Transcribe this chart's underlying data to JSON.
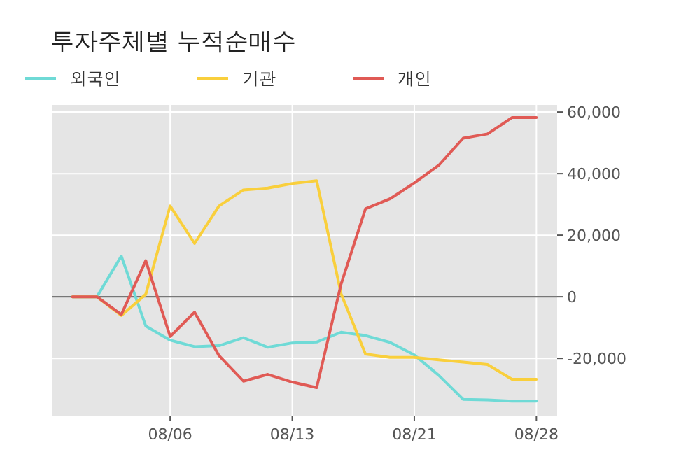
{
  "chart_data": {
    "type": "line",
    "title": "투자주체별 누적순매수",
    "categories": [
      null,
      null,
      null,
      null,
      "08/06",
      null,
      null,
      null,
      null,
      "08/13",
      null,
      null,
      null,
      null,
      "08/21",
      null,
      null,
      null,
      null,
      "08/28"
    ],
    "series": [
      {
        "name": "외국인",
        "color": "#6fdad6",
        "values": [
          0,
          0,
          13200,
          -9500,
          -14100,
          -16200,
          -15900,
          -13300,
          -16400,
          -15000,
          -14700,
          -11500,
          -12600,
          -14800,
          -18900,
          -25500,
          -33300,
          -33500,
          -33900,
          -33900
        ]
      },
      {
        "name": "기관",
        "color": "#f9cf3c",
        "values": [
          0,
          0,
          -6100,
          800,
          29500,
          17300,
          29500,
          34700,
          35300,
          36800,
          37700,
          1000,
          -18600,
          -19700,
          -19700,
          -20500,
          -21200,
          -22000,
          -26800,
          -26800
        ]
      },
      {
        "name": "개인",
        "color": "#e05a55",
        "values": [
          0,
          0,
          -5800,
          11700,
          -12900,
          -5000,
          -19100,
          -27400,
          -25200,
          -27700,
          -29500,
          4100,
          28600,
          31800,
          37000,
          42700,
          51500,
          52900,
          58200,
          58200
        ]
      }
    ],
    "ylim": [
      -38600,
      62300
    ],
    "yticks": [
      {
        "value": -20000,
        "label": "-20,000"
      },
      0,
      {
        "value": 20000,
        "label": "20,000"
      },
      {
        "value": 40000,
        "label": "40,000"
      },
      {
        "value": 60000,
        "label": "60,000"
      }
    ],
    "ref_lines": [
      {
        "axis": "y",
        "value": 0,
        "color": "#777777"
      }
    ],
    "grid": true,
    "legend": "top left",
    "marker": "none",
    "line_style": "solid"
  }
}
